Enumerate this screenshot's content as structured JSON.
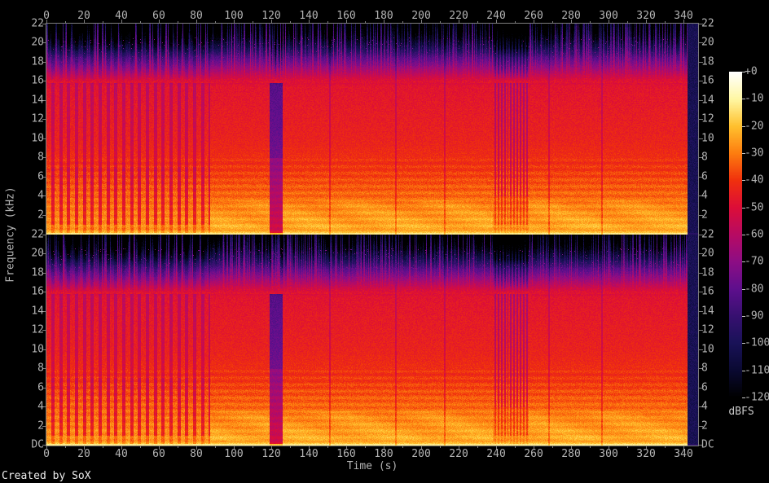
{
  "creator_note": "Created by SoX",
  "chart_data": {
    "type": "heatmap",
    "subtype": "audio-spectrogram",
    "channels": 2,
    "xlabel": "Time (s)",
    "ylabel": "Frequency (kHz)",
    "colorbar_label": "dBFS",
    "x_range_s": [
      0,
      347.8
    ],
    "time_ticks_s": [
      0,
      20,
      40,
      60,
      80,
      100,
      120,
      140,
      160,
      180,
      200,
      220,
      240,
      260,
      280,
      300,
      320,
      340
    ],
    "time_minor_step_s": 10,
    "freq_ticks_khz": [
      22,
      20,
      18,
      16,
      14,
      12,
      10,
      8,
      6,
      4,
      2
    ],
    "dc_label": "DC",
    "freq_range_khz": [
      0,
      22
    ],
    "db_ticks": [
      "+0",
      "-10",
      "-20",
      "-30",
      "-40",
      "-50",
      "-60",
      "-70",
      "-80",
      "-90",
      "-100",
      "-110",
      "-120"
    ],
    "db_range": [
      0,
      -120
    ],
    "audio_end_s": 342,
    "colormap_stops": [
      {
        "db": 0,
        "color": "#ffffff"
      },
      {
        "db": -10,
        "color": "#fff7a3"
      },
      {
        "db": -20,
        "color": "#ffc02e"
      },
      {
        "db": -30,
        "color": "#fd7d0f"
      },
      {
        "db": -40,
        "color": "#f0300d"
      },
      {
        "db": -50,
        "color": "#dc0d38"
      },
      {
        "db": -60,
        "color": "#b70b63"
      },
      {
        "db": -70,
        "color": "#8d0d84"
      },
      {
        "db": -80,
        "color": "#5e0f8d"
      },
      {
        "db": -90,
        "color": "#371070"
      },
      {
        "db": -100,
        "color": "#191258"
      },
      {
        "db": -110,
        "color": "#0a0932"
      },
      {
        "db": -120,
        "color": "#000000"
      }
    ],
    "base_spectrum_khz_db": [
      [
        0.0,
        -12
      ],
      [
        0.2,
        -22
      ],
      [
        0.6,
        -26
      ],
      [
        1.5,
        -28
      ],
      [
        3,
        -31
      ],
      [
        5,
        -35
      ],
      [
        7,
        -40
      ],
      [
        10,
        -44
      ],
      [
        13,
        -46
      ],
      [
        15.5,
        -48
      ],
      [
        16.5,
        -56
      ],
      [
        17.5,
        -70
      ],
      [
        18.5,
        -84
      ],
      [
        19.5,
        -105
      ],
      [
        20.5,
        -118
      ],
      [
        21,
        -122
      ],
      [
        22,
        -126
      ]
    ],
    "segments": [
      {
        "t0": 0,
        "t1": 87,
        "name": "intro-striped",
        "stripe_period_s": 4.2,
        "stripe_duty": 0.58,
        "stripe_depth_db": 16
      },
      {
        "t0": 87,
        "t1": 119,
        "name": "full-band"
      },
      {
        "t0": 119,
        "t1": 126,
        "name": "quiet-break",
        "atten_db": 28
      },
      {
        "t0": 126,
        "t1": 238,
        "name": "full-band"
      },
      {
        "t0": 238,
        "t1": 257,
        "name": "breakdown-striped",
        "stripe_period_s": 1.7,
        "stripe_duty": 0.5,
        "stripe_depth_db": 15
      },
      {
        "t0": 257,
        "t1": 342,
        "name": "full-band"
      },
      {
        "t0": 342,
        "t1": 347.8,
        "name": "silence",
        "level_db": -101
      }
    ],
    "quiet_accents_s": [
      151,
      186,
      212,
      268,
      296
    ]
  },
  "colors": {
    "background": "#000000",
    "axis_line": "#7d7d7d",
    "axis_text": "#b4b4b4",
    "creator_text": "#ececec"
  }
}
